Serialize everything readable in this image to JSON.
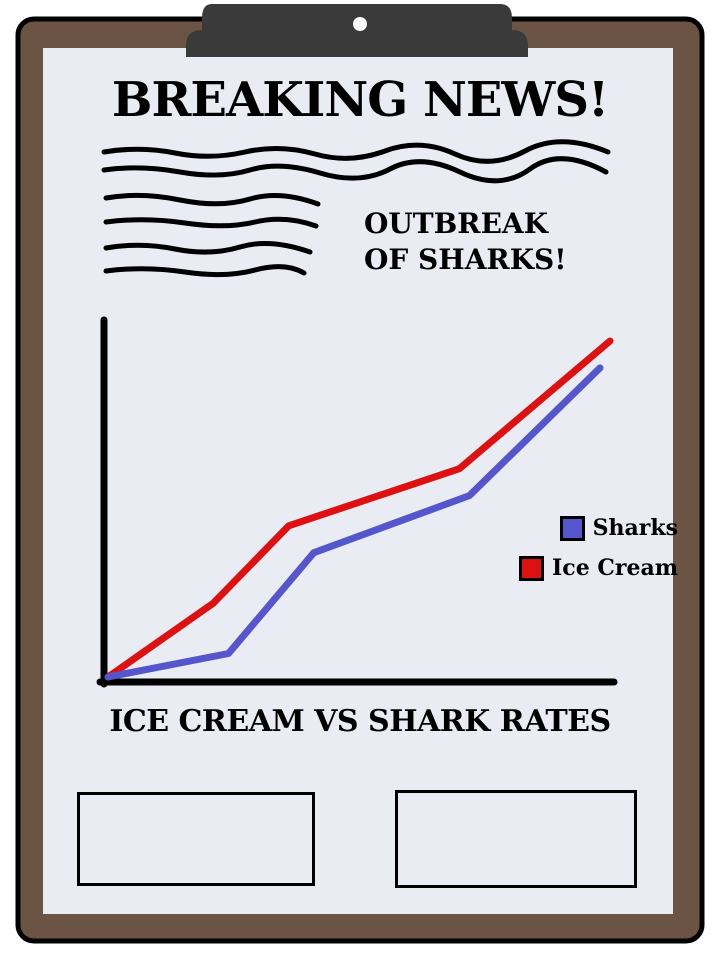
{
  "headline": "BREAKING NEWS!",
  "subheadline": {
    "lines": [
      "OUTBREAK",
      "OF SHARKS!"
    ]
  },
  "colors": {
    "clipboard_board": "#6b5443",
    "clip": "#3a3a3a",
    "paper": "#e9ecf2",
    "outline": "#000000",
    "sharks": "#5555cc",
    "ice_cream": "#dd1111"
  },
  "chart_data": {
    "type": "line",
    "title": "ICE CREAM VS SHARK RATES",
    "xlabel": "",
    "ylabel": "",
    "grid": false,
    "ylim": [
      0,
      100
    ],
    "legend_position": "right",
    "series": [
      {
        "name": "Sharks",
        "color": "#5555cc",
        "x": [
          0,
          24,
          41,
          72,
          98
        ],
        "values": [
          0,
          7,
          37,
          54,
          92
        ]
      },
      {
        "name": "Ice Cream",
        "color": "#dd1111",
        "x": [
          0,
          21,
          36,
          70,
          100
        ],
        "values": [
          0,
          22,
          45,
          62,
          100
        ]
      }
    ]
  }
}
